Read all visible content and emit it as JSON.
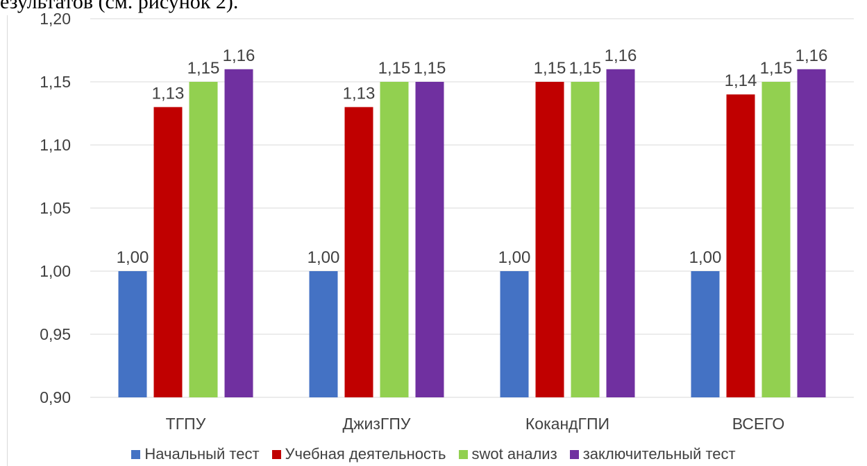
{
  "document": {
    "fragment_text": "езультатов (см. рисунок 2)."
  },
  "chart_data": {
    "type": "bar",
    "categories": [
      "ТГПУ",
      "ДжизГПУ",
      "КокандГПИ",
      "ВСЕГО"
    ],
    "series": [
      {
        "name": "Начальный тест",
        "color": "#4472c4",
        "values": [
          1.0,
          1.0,
          1.0,
          1.0
        ],
        "labels": [
          "1,00",
          "1,00",
          "1,00",
          "1,00"
        ]
      },
      {
        "name": "Учебная деятельность",
        "color": "#c00000",
        "values": [
          1.13,
          1.13,
          1.15,
          1.14
        ],
        "labels": [
          "1,13",
          "1,13",
          "1,15",
          "1,14"
        ]
      },
      {
        "name": "swot анализ",
        "color": "#92d050",
        "values": [
          1.15,
          1.15,
          1.15,
          1.15
        ],
        "labels": [
          "1,15",
          "1,15",
          "1,15",
          "1,15"
        ]
      },
      {
        "name": "заключительный тест",
        "color": "#7030a0",
        "values": [
          1.16,
          1.15,
          1.16,
          1.16
        ],
        "labels": [
          "1,16",
          "1,15",
          "1,16",
          "1,16"
        ]
      }
    ],
    "y_ticks": [
      "0,90",
      "0,95",
      "1,00",
      "1,05",
      "1,10",
      "1,15",
      "1,20"
    ],
    "ylim": [
      0.9,
      1.2
    ],
    "grid": true,
    "legend_position": "bottom",
    "gridline_color": "#d9d9d9",
    "label_color": "#404040"
  }
}
